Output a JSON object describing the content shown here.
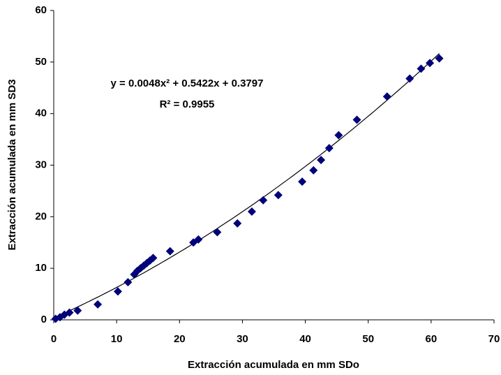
{
  "chart_data": {
    "type": "scatter",
    "xlabel": "Extracción acumulada en mm SDo",
    "ylabel": "Extracción acumulada en mm SD3",
    "series": [
      {
        "color": "#00007a",
        "x": [
          0.3,
          1,
          1.7,
          2.5,
          3.8,
          7,
          10.2,
          11.8,
          12.8,
          13.3,
          13.8,
          14.3,
          14.8,
          15.3,
          15.8,
          18.5,
          22.2,
          23,
          26,
          29.2,
          31.5,
          33.3,
          35.7,
          39.5,
          41.3,
          42.5,
          43.8,
          45.3,
          48.2,
          53,
          56.6,
          58.4,
          59.8,
          61.3
        ],
        "values": [
          0.2,
          0.5,
          1,
          1.4,
          1.8,
          3,
          5.5,
          7.3,
          8.8,
          9.5,
          10,
          10.5,
          11,
          11.5,
          12,
          13.3,
          15,
          15.6,
          17,
          18.7,
          21,
          23.2,
          24.2,
          26.8,
          29,
          31,
          33.3,
          35.8,
          38.8,
          43.3,
          46.8,
          48.7,
          49.8,
          50.7
        ]
      }
    ],
    "trendline": {
      "equation": "y = 0.0048x² + 0.5422x + 0.3797",
      "r2": "R² = 0.9955",
      "coefficients": [
        0.0048,
        0.5422,
        0.3797
      ],
      "color": "#000000"
    },
    "xlim": [
      0,
      70
    ],
    "xticks": [
      0,
      10,
      20,
      30,
      40,
      50,
      60,
      70
    ],
    "ylim": [
      0,
      60
    ],
    "yticks": [
      0,
      10,
      20,
      30,
      40,
      50,
      60
    ]
  }
}
